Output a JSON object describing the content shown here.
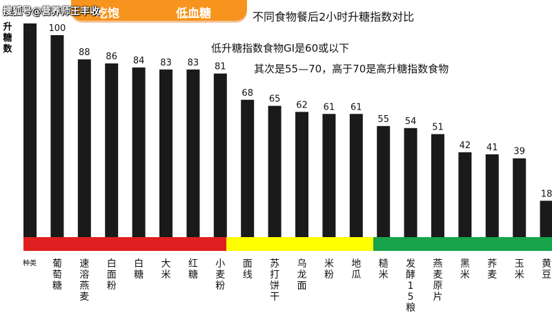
{
  "watermark": "搜狐号@营养师王丰收",
  "badge": {
    "left_text": "吃饱",
    "right_text": "低血糖"
  },
  "title": "不同食物餐后2小时升糖指数对比",
  "notes": [
    "低升糖指数食物GI是60或以下",
    "其次是55—70，高于70是高升糖指数食物"
  ],
  "chart_data": {
    "type": "bar",
    "ylabel": "升糖数",
    "xlabel": "种类",
    "categories": [
      "葡萄糖",
      "速溶燕麦",
      "白面粉",
      "白糖",
      "大米",
      "红糖",
      "小麦粉",
      "面线",
      "苏打饼干",
      "乌龙面",
      "米粉",
      "地瓜",
      "糙米",
      "发酵15粮",
      "燕麦原片",
      "黑米",
      "荞麦",
      "玉米",
      "黄豆"
    ],
    "first_bar_label": "",
    "values": [
      100,
      88,
      86,
      84,
      83,
      83,
      81,
      68,
      65,
      62,
      61,
      61,
      55,
      54,
      51,
      42,
      41,
      39,
      18
    ],
    "band_colors": [
      {
        "name": "high",
        "color": "#e02020"
      },
      {
        "name": "medium",
        "color": "#ffff00"
      },
      {
        "name": "low",
        "color": "#16a34a"
      }
    ],
    "bar_color": "#1a1a1a"
  }
}
